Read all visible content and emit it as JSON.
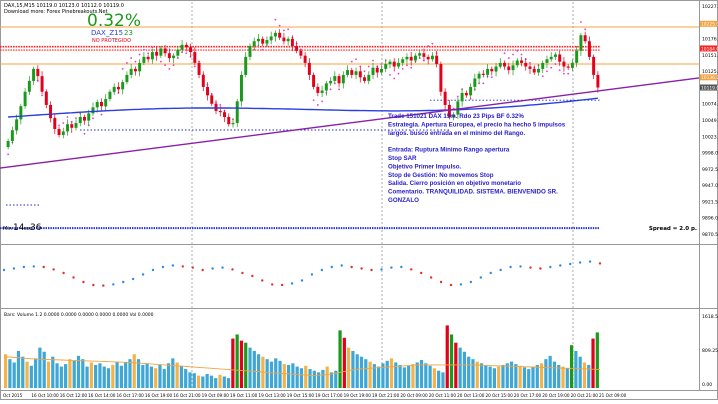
{
  "header": {
    "symbol_line": "DAX,15,M15  10119.0 10123.0 10112.0 10119.0",
    "indicator_line": "Download more: Forex Pinebreakouts.Net",
    "percent": "0.32%",
    "label": "DAX_Z15",
    "label_value": "23",
    "status": "NO PROTEGIDO"
  },
  "annotation": {
    "lines": [
      "Trade 151021 DAX 15m. Rdo 23 Pips BF 0.32%",
      "Estrategia. Apertura Europea, el precio ha hecho 5 impulsos",
      "largos. busco entrada en el mínimo del Rango.",
      "",
      "Entrada: Ruptura Mínimo Rango apertura",
      "Stop SAR",
      "Objetivo Primer Impulso.",
      "Stop de Gestión: No movemos Stop",
      "Salida. Cierro posición en objetivo monetario",
      "Comentario. TRANQUILIDAD. SISTEMA. BIENVENIDO SR.",
      "GONZALO"
    ]
  },
  "timer": {
    "prefix": "Min",
    "big": "14",
    "mid": "sec",
    "small": "36"
  },
  "spread": "Spread = 2.0 p.",
  "volume_title": "Bars: Volume 1.2 0.0000 0.0000 0.0000 0.0000 0.0000 Vol 0.0000",
  "colors": {
    "up": "#1a9a1a",
    "down": "#e2001a",
    "ma_blue": "#2a3fe0",
    "ma_purple": "#8a1fa8",
    "resistance": "#ff2020",
    "orange": "#f4a340",
    "accent_green": "#1a9a1a"
  },
  "chart_data": [
    {
      "type": "candlestick",
      "title": "DAX,15,M15",
      "y_ticks": [
        "10227.0",
        "10202.0",
        "10176.5",
        "10151.0",
        "10125.5",
        "10100.0",
        "10074.5",
        "10049.0",
        "10023.5",
        "9998.0",
        "9972.5",
        "9947.0",
        "9921.5",
        "9896.0",
        "9870.5"
      ],
      "ylim": [
        9862,
        10238
      ],
      "price_tags": [
        {
          "value": 10225.0,
          "color": "#f4a340"
        },
        {
          "value": 10184.0,
          "color": "#ff2020"
        },
        {
          "value": 10136.0,
          "color": "#f4a340"
        },
        {
          "value": 10119.0,
          "color": "#555555"
        }
      ],
      "close": [
        10030,
        10048,
        10066,
        10088,
        10112,
        10130,
        10150,
        10138,
        10112,
        10090,
        10068,
        10050,
        10040,
        10046,
        10058,
        10052,
        10060,
        10070,
        10064,
        10076,
        10086,
        10095,
        10088,
        10100,
        10112,
        10120,
        10116,
        10128,
        10140,
        10150,
        10146,
        10160,
        10170,
        10166,
        10178,
        10172,
        10184,
        10176,
        10168,
        10172,
        10182,
        10190,
        10186,
        10178,
        10160,
        10140,
        10120,
        10106,
        10092,
        10080,
        10078,
        10070,
        10058,
        10060,
        10096,
        10140,
        10170,
        10188,
        10196,
        10200,
        10192,
        10198,
        10204,
        10210,
        10202,
        10196,
        10200,
        10188,
        10180,
        10172,
        10160,
        10140,
        10120,
        10110,
        10114,
        10126,
        10130,
        10138,
        10126,
        10140,
        10148,
        10140,
        10146,
        10136,
        10130,
        10140,
        10152,
        10144,
        10150,
        10158,
        10162,
        10154,
        10160,
        10166,
        10170,
        10164,
        10172,
        10176,
        10170,
        10166,
        10172,
        10158,
        10112,
        10090,
        10070,
        10074,
        10096,
        10110,
        10106,
        10120,
        10134,
        10142,
        10140,
        10150,
        10146,
        10154,
        10160,
        10154,
        10148,
        10156,
        10164,
        10160,
        10154,
        10150,
        10144,
        10150,
        10160,
        10166,
        10170,
        10174,
        10162,
        10154,
        10152,
        10160,
        10180,
        10206,
        10196,
        10170,
        10140,
        10119
      ],
      "sessions": [
        "Oct 2015",
        "16 Oct 10:00",
        "16 Oct 12:00",
        "16 Oct 14:00",
        "16 Oct 17:00",
        "16 Oct 19:00",
        "16 Oct 21:00",
        "19 Oct 09:00",
        "19 Oct 11:00",
        "19 Oct 13:00",
        "19 Oct 15:00",
        "19 Oct 17:00",
        "19 Oct 19:00",
        "19 Oct 21:00",
        "20 Oct 09:00",
        "20 Oct 11:00",
        "20 Oct 13:00",
        "20 Oct 15:00",
        "20 Oct 17:00",
        "20 Oct 19:00",
        "20 Oct 21:00",
        "21 Oct 09:00"
      ],
      "ma_fast": [
        10070,
        10104
      ],
      "ma_slow": [
        9985,
        10135
      ],
      "resistance": 10185,
      "support_blue": 10050,
      "lower_blue": 9885
    },
    {
      "type": "scatter",
      "title": "",
      "ylim": [
        -1,
        1
      ],
      "values": [
        0.2,
        0.25,
        0.3,
        0.32,
        0.3,
        0.22,
        0.1,
        -0.05,
        -0.2,
        -0.3,
        -0.32,
        -0.28,
        -0.2,
        -0.1,
        0.05,
        0.2,
        0.3,
        0.35,
        0.32,
        0.28,
        0.2,
        0.25,
        0.28,
        0.22,
        0.1,
        0.0,
        -0.15,
        -0.28,
        -0.3,
        -0.25,
        -0.15,
        0.05,
        0.2,
        0.3,
        0.35,
        0.3,
        0.25,
        0.2,
        0.22,
        0.28,
        0.3,
        0.22,
        0.1,
        -0.05,
        -0.2,
        -0.3,
        -0.28,
        -0.2,
        -0.05,
        0.1,
        0.2,
        0.3,
        0.32,
        0.28,
        0.25,
        0.3,
        0.35,
        0.4,
        0.45,
        0.48,
        0.42
      ]
    },
    {
      "type": "bar",
      "title": "Bars: Volume 1.2",
      "y_ticks": [
        "1618.5",
        "809.25",
        "0.00"
      ],
      "ylim": [
        0,
        1700
      ],
      "values": [
        820,
        700,
        620,
        900,
        760,
        640,
        540,
        720,
        980,
        880,
        640,
        760,
        600,
        520,
        580,
        700,
        660,
        780,
        700,
        520,
        620,
        560,
        600,
        520,
        480,
        560,
        640,
        540,
        620,
        700,
        820,
        700,
        560,
        600,
        520,
        480,
        560,
        460,
        600,
        720,
        620,
        540,
        460,
        380,
        360,
        300,
        280,
        340,
        300,
        240,
        320,
        280,
        240,
        1200,
        1300,
        1150,
        1100,
        980,
        900,
        820,
        760,
        700,
        640,
        720,
        660,
        580,
        560,
        600,
        520,
        480,
        540,
        460,
        420,
        380,
        440,
        520,
        380,
        420,
        1400,
        1220,
        980,
        900,
        820,
        760,
        700,
        640,
        580,
        520,
        600,
        660,
        720,
        620,
        560,
        500,
        540,
        580,
        620,
        680,
        600,
        540,
        480,
        420,
        380,
        1520,
        1300,
        1100,
        980,
        880,
        760,
        700,
        640,
        600,
        560,
        520,
        480,
        520,
        560,
        600,
        640,
        580,
        540,
        500,
        460,
        520,
        560,
        600,
        700,
        780,
        640,
        560,
        520,
        480,
        1040,
        900,
        760,
        620,
        560,
        1200,
        1350
      ],
      "ma": [
        760,
        740,
        720,
        700,
        690,
        680,
        670,
        660,
        650,
        640,
        630,
        620,
        600,
        580,
        560,
        540,
        520,
        500,
        480,
        460,
        440,
        420,
        400,
        380,
        360,
        340,
        320,
        300,
        320,
        360,
        420,
        460,
        480,
        500,
        520,
        540,
        560,
        560,
        560,
        560,
        560,
        560,
        550,
        540,
        530,
        520,
        510,
        500,
        490,
        480,
        470,
        460,
        450
      ]
    }
  ]
}
